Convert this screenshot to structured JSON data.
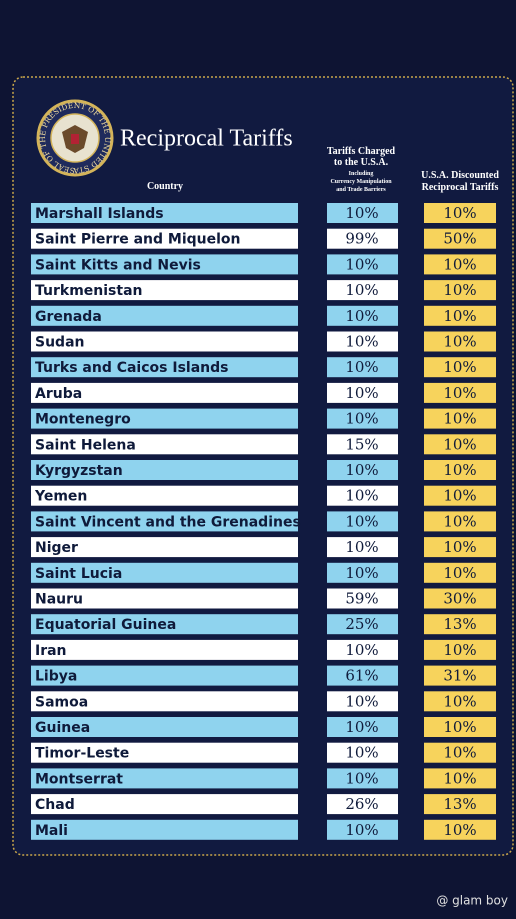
{
  "header": {
    "title": "Reciprocal Tariffs",
    "seal_text": "SEAL OF THE PRESIDENT OF THE UNITED STATES",
    "country_header": "Country",
    "charged_header": [
      "Tariffs Charged",
      "to the U.S.A."
    ],
    "charged_note": [
      "Including",
      "Currency Manipulation",
      "and Trade Barriers"
    ],
    "discounted_header": [
      "U.S.A. Discounted",
      "Reciprocal Tariffs"
    ]
  },
  "table": {
    "rows": [
      [
        "Marshall Islands",
        "10%",
        "10%"
      ],
      [
        "Saint Pierre and Miquelon",
        "99%",
        "50%"
      ],
      [
        "Saint Kitts and Nevis",
        "10%",
        "10%"
      ],
      [
        "Turkmenistan",
        "10%",
        "10%"
      ],
      [
        "Grenada",
        "10%",
        "10%"
      ],
      [
        "Sudan",
        "10%",
        "10%"
      ],
      [
        "Turks and Caicos Islands",
        "10%",
        "10%"
      ],
      [
        "Aruba",
        "10%",
        "10%"
      ],
      [
        "Montenegro",
        "10%",
        "10%"
      ],
      [
        "Saint Helena",
        "15%",
        "10%"
      ],
      [
        "Kyrgyzstan",
        "10%",
        "10%"
      ],
      [
        "Yemen",
        "10%",
        "10%"
      ],
      [
        "Saint Vincent and the Grenadines",
        "10%",
        "10%"
      ],
      [
        "Niger",
        "10%",
        "10%"
      ],
      [
        "Saint Lucia",
        "10%",
        "10%"
      ],
      [
        "Nauru",
        "59%",
        "30%"
      ],
      [
        "Equatorial Guinea",
        "25%",
        "13%"
      ],
      [
        "Iran",
        "10%",
        "10%"
      ],
      [
        "Libya",
        "61%",
        "31%"
      ],
      [
        "Samoa",
        "10%",
        "10%"
      ],
      [
        "Guinea",
        "10%",
        "10%"
      ],
      [
        "Timor-Leste",
        "10%",
        "10%"
      ],
      [
        "Montserrat",
        "10%",
        "10%"
      ],
      [
        "Chad",
        "26%",
        "13%"
      ],
      [
        "Mali",
        "10%",
        "10%"
      ]
    ]
  },
  "watermark": "@ glam boy"
}
